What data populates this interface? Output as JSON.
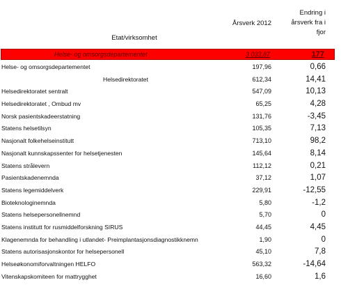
{
  "header": {
    "etat_label": "Etat/virksomhet",
    "arsverk_label": "Årsverk 2012",
    "endring_lines": [
      "Endring i",
      "årsverk fra i",
      "fjor"
    ]
  },
  "total": {
    "name": "Helse- og omsorgsdepartementet",
    "arsverk": "3 033,87",
    "endring": "177"
  },
  "rows": [
    {
      "name": "Helse- og omsorgsdepartementet",
      "arsverk": "197,96",
      "endring": "0,66",
      "indent": false
    },
    {
      "name": "Helsedirektoratet",
      "arsverk": "612,34",
      "endring": "14,41",
      "indent": true
    },
    {
      "name": "Helsedirektoratet sentralt",
      "arsverk": "547,09",
      "endring": "10,13",
      "indent": false
    },
    {
      "name": "Helsedirektoratet , Ombud mv",
      "arsverk": "65,25",
      "endring": "4,28",
      "indent": false
    },
    {
      "name": "Norsk pasientskadeerstatning",
      "arsverk": "131,76",
      "endring": "-3,45",
      "indent": false
    },
    {
      "name": "Statens helsetilsyn",
      "arsverk": "105,35",
      "endring": "7,13",
      "indent": false
    },
    {
      "name": "Nasjonalt folkehelseinstitutt",
      "arsverk": "713,10",
      "endring": "98,2",
      "indent": false
    },
    {
      "name": "Nasjonalt kunnskapssenter for helsetjenesten",
      "arsverk": "145,64",
      "endring": "8,14",
      "indent": false
    },
    {
      "name": "Statens strålevern",
      "arsverk": "112,12",
      "endring": "0,21",
      "indent": false
    },
    {
      "name": "Pasientskadenemnda",
      "arsverk": "37,12",
      "endring": "1,07",
      "indent": false
    },
    {
      "name": "Statens legemiddelverk",
      "arsverk": "229,91",
      "endring": "-12,55",
      "indent": false
    },
    {
      "name": "Bioteknologinemnda",
      "arsverk": "5,80",
      "endring": "-1,2",
      "indent": false
    },
    {
      "name": "Statens helsepersonellnemnd",
      "arsverk": "5,70",
      "endring": "0",
      "indent": false
    },
    {
      "name": "Statens institutt for rusmiddelforskning SIRUS",
      "arsverk": "44,45",
      "endring": "4,45",
      "indent": false
    },
    {
      "name": "Klagenemnda for behandling i utlandet- Preimplantasjonsdiagnostikknemn",
      "arsverk": "1,90",
      "endring": "0",
      "indent": false
    },
    {
      "name": "Statens autorisasjonskontor for helsepersonell",
      "arsverk": "45,10",
      "endring": "7,8",
      "indent": false
    },
    {
      "name": "Helseøkonomiforvaltningen HELFO",
      "arsverk": "563,32",
      "endring": "-14,64",
      "indent": false
    },
    {
      "name": "Vitenskapskomiteen for mattrygghet",
      "arsverk": "16,60",
      "endring": "1,6",
      "indent": false
    }
  ]
}
